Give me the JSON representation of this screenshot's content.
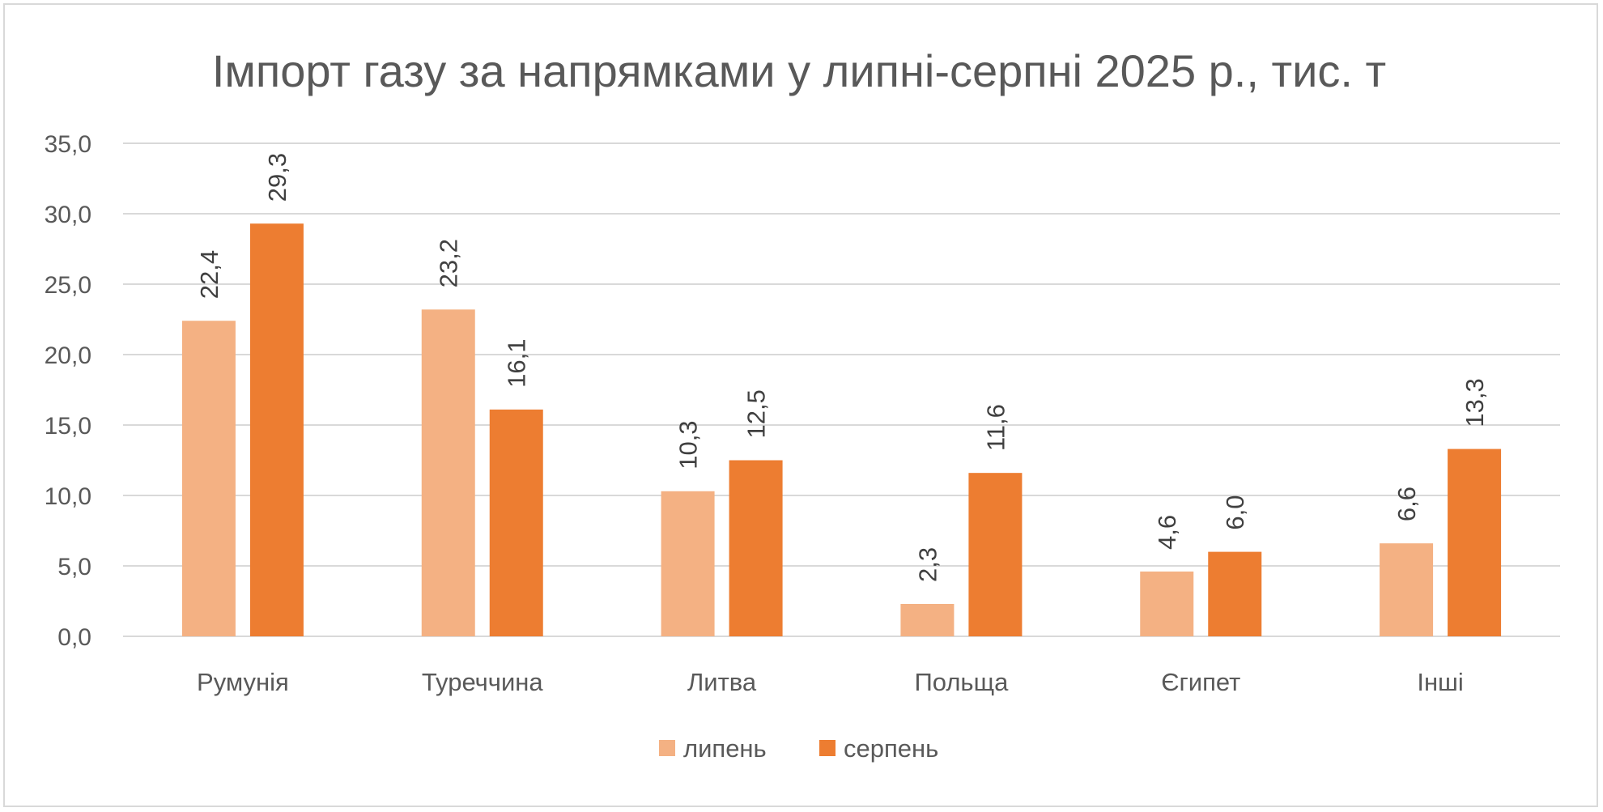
{
  "chart_data": {
    "type": "bar",
    "title": "Імпорт газу за напрямками у липні-серпні 2025 р., тис. т",
    "xlabel": "",
    "ylabel": "",
    "categories": [
      "Румунія",
      "Туреччина",
      "Литва",
      "Польща",
      "Єгипет",
      "Інші"
    ],
    "series": [
      {
        "name": "липень",
        "values": [
          22.4,
          23.2,
          10.3,
          2.3,
          4.6,
          6.6
        ],
        "labels": [
          "22,4",
          "23,2",
          "10,3",
          "2,3",
          "4,6",
          "6,6"
        ],
        "color": "#F4B183"
      },
      {
        "name": "серпень",
        "values": [
          29.3,
          16.1,
          12.5,
          11.6,
          6.0,
          13.3
        ],
        "labels": [
          "29,3",
          "16,1",
          "12,5",
          "11,6",
          "6,0",
          "13,3"
        ],
        "color": "#ED7D31"
      }
    ],
    "ylim": [
      0,
      35
    ],
    "yticks": [
      0,
      5,
      10,
      15,
      20,
      25,
      30,
      35
    ],
    "ytick_labels": [
      "0,0",
      "5,0",
      "10,0",
      "15,0",
      "20,0",
      "25,0",
      "30,0",
      "35,0"
    ],
    "grid": true,
    "legend": "bottom",
    "data_labels_rotated": true
  }
}
